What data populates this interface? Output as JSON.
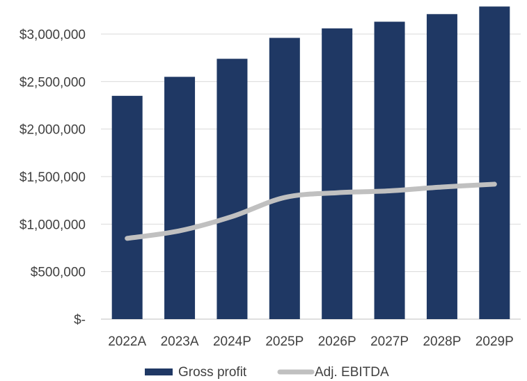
{
  "chart_data": {
    "type": "bar",
    "title": "",
    "xlabel": "",
    "ylabel": "",
    "categories": [
      "2022A",
      "2023A",
      "2024P",
      "2025P",
      "2026P",
      "2027P",
      "2028P",
      "2029P"
    ],
    "series": [
      {
        "name": "Gross profit",
        "kind": "bar",
        "color": "#1f3864",
        "values": [
          2350000,
          2550000,
          2740000,
          2960000,
          3060000,
          3130000,
          3210000,
          3290000
        ]
      },
      {
        "name": "Adj. EBITDA",
        "kind": "line",
        "color": "#c0c0c0",
        "values": [
          850000,
          930000,
          1080000,
          1280000,
          1330000,
          1350000,
          1390000,
          1420000
        ]
      }
    ],
    "ylim": [
      0,
      3300000
    ],
    "yticks": [
      0,
      500000,
      1000000,
      1500000,
      2000000,
      2500000,
      3000000
    ],
    "ytick_labels": [
      "$-",
      "$500,000",
      "$1,000,000",
      "$1,500,000",
      "$2,000,000",
      "$2,500,000",
      "$3,000,000"
    ],
    "grid": true,
    "legend_position": "bottom"
  }
}
